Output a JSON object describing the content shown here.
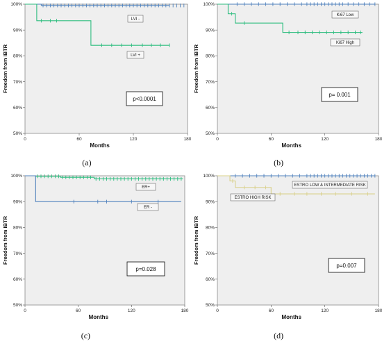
{
  "chart_data": [
    {
      "type": "line",
      "caption": "(a)",
      "xlabel": "Months",
      "ylabel": "Freedom from IBTR",
      "xticks": [
        "0",
        "60",
        "120",
        "180"
      ],
      "yticks": [
        "50%",
        "60%",
        "70%",
        "80%",
        "90%",
        "100%"
      ],
      "xlim": [
        0,
        180
      ],
      "ylim": [
        0.5,
        1.0
      ],
      "grid": false,
      "p_value": "p<0.0001",
      "series": [
        {
          "name": "LVI -",
          "color": "#4f81bd",
          "x": [
            0,
            18,
            18,
            160
          ],
          "y": [
            1.0,
            1.0,
            0.995,
            0.995
          ],
          "censor_x": [
            20,
            24,
            28,
            32,
            36,
            40,
            44,
            48,
            52,
            56,
            60,
            64,
            68,
            72,
            76,
            80,
            84,
            88,
            92,
            96,
            100,
            104,
            108,
            112,
            116,
            120,
            124,
            128,
            132,
            136,
            140,
            144,
            148,
            152,
            156,
            160,
            164,
            168,
            172,
            176
          ],
          "censor_y": 0.995
        },
        {
          "name": "LVI +",
          "color": "#2dbd7f",
          "x": [
            0,
            13,
            13,
            73,
            73,
            160
          ],
          "y": [
            1.0,
            1.0,
            0.936,
            0.936,
            0.841,
            0.841
          ],
          "censor_x": [
            18,
            28,
            35,
            85,
            96,
            107,
            118,
            130,
            140,
            150,
            160
          ],
          "censor_y_list": [
            0.936,
            0.936,
            0.936,
            0.841,
            0.841,
            0.841,
            0.841,
            0.841,
            0.841,
            0.841,
            0.841
          ]
        }
      ]
    },
    {
      "type": "line",
      "caption": "(b)",
      "xlabel": "Months",
      "ylabel": "Freedom from IBTR",
      "xticks": [
        "0",
        "60",
        "120",
        "180"
      ],
      "yticks": [
        "50%",
        "60%",
        "70%",
        "80%",
        "90%",
        "100%"
      ],
      "xlim": [
        0,
        180
      ],
      "ylim": [
        0.5,
        1.0
      ],
      "grid": false,
      "p_value": "p= 0.001",
      "series": [
        {
          "name": "Ki67 Low",
          "color": "#4f81bd",
          "x": [
            0,
            176
          ],
          "y": [
            1.0,
            1.0
          ],
          "censor_x": [
            22,
            30,
            38,
            46,
            54,
            62,
            70,
            78,
            86,
            94,
            100,
            104,
            108,
            112,
            116,
            120,
            124,
            128,
            132,
            136,
            140,
            146,
            152,
            158,
            164,
            170,
            176
          ],
          "censor_y": 1.0
        },
        {
          "name": "Ki67 High",
          "color": "#2dbd7f",
          "x": [
            0,
            12,
            12,
            20,
            20,
            73,
            73,
            162
          ],
          "y": [
            1.0,
            1.0,
            0.963,
            0.963,
            0.927,
            0.927,
            0.891,
            0.891
          ],
          "censor_x": [
            16,
            30,
            80,
            90,
            98,
            106,
            114,
            122,
            130,
            138,
            146,
            154,
            160
          ],
          "censor_y_list": [
            0.963,
            0.927,
            0.891,
            0.891,
            0.891,
            0.891,
            0.891,
            0.891,
            0.891,
            0.891,
            0.891,
            0.891,
            0.891
          ]
        }
      ]
    },
    {
      "type": "line",
      "caption": "(c)",
      "xlabel": "Months",
      "ylabel": "Freedom from IBTR",
      "xticks": [
        "0",
        "60",
        "120",
        "180"
      ],
      "yticks": [
        "50%",
        "60%",
        "70%",
        "80%",
        "90%",
        "100%"
      ],
      "xlim": [
        0,
        180
      ],
      "ylim": [
        0.5,
        1.0
      ],
      "grid": false,
      "p_value": "p=0.028",
      "series": [
        {
          "name": "ER+",
          "color": "#2dbd7f",
          "x": [
            0,
            12,
            12,
            40,
            40,
            78,
            78,
            178
          ],
          "y": [
            1.0,
            1.0,
            0.998,
            0.998,
            0.994,
            0.994,
            0.988,
            0.988
          ],
          "censor_x": [
            14,
            18,
            22,
            26,
            30,
            34,
            38,
            42,
            46,
            50,
            54,
            58,
            62,
            66,
            70,
            74,
            80,
            84,
            88,
            92,
            96,
            100,
            104,
            108,
            112,
            116,
            120,
            124,
            128,
            132,
            136,
            140,
            144,
            148,
            152,
            156,
            160,
            164,
            168,
            172,
            176
          ],
          "censor_y_list": [
            0.998,
            0.998,
            0.998,
            0.998,
            0.998,
            0.998,
            0.998,
            0.994,
            0.994,
            0.994,
            0.994,
            0.994,
            0.994,
            0.994,
            0.994,
            0.994,
            0.988,
            0.988,
            0.988,
            0.988,
            0.988,
            0.988,
            0.988,
            0.988,
            0.988,
            0.988,
            0.988,
            0.988,
            0.988,
            0.988,
            0.988,
            0.988,
            0.988,
            0.988,
            0.988,
            0.988,
            0.988,
            0.988,
            0.988,
            0.988,
            0.988
          ]
        },
        {
          "name": "ER -",
          "color": "#4f81bd",
          "x": [
            0,
            12,
            12,
            176
          ],
          "y": [
            1.0,
            1.0,
            0.9,
            0.9
          ],
          "censor_x": [
            55,
            82,
            92,
            120,
            150
          ],
          "censor_y": 0.9
        }
      ]
    },
    {
      "type": "line",
      "caption": "(d)",
      "xlabel": "Months",
      "ylabel": "Freedom from IBTR",
      "xticks": [
        "0",
        "60",
        "120",
        "180"
      ],
      "yticks": [
        "50%",
        "60%",
        "70%",
        "80%",
        "90%",
        "100%"
      ],
      "xlim": [
        0,
        180
      ],
      "ylim": [
        0.5,
        1.0
      ],
      "grid": false,
      "p_value": "p=0.007",
      "series": [
        {
          "name": "ESTRO LOW & INTERMEDIATE RISK",
          "color": "#4f81bd",
          "x": [
            0,
            176
          ],
          "y": [
            1.0,
            1.0
          ],
          "censor_x": [
            20,
            28,
            36,
            44,
            52,
            60,
            68,
            76,
            84,
            92,
            100,
            104,
            108,
            112,
            116,
            120,
            124,
            128,
            132,
            136,
            140,
            144,
            148,
            152,
            156,
            160,
            164,
            168,
            172,
            176
          ],
          "censor_y": 1.0
        },
        {
          "name": "ESTRO HIGH RISK",
          "color": "#d9d08a",
          "x": [
            0,
            14,
            14,
            20,
            20,
            60,
            60,
            176
          ],
          "y": [
            1.0,
            1.0,
            0.98,
            0.98,
            0.955,
            0.955,
            0.93,
            0.93
          ],
          "censor_x": [
            17,
            30,
            42,
            54,
            70,
            86,
            100,
            116,
            132,
            150,
            168
          ],
          "censor_y_list": [
            0.98,
            0.955,
            0.955,
            0.955,
            0.93,
            0.93,
            0.93,
            0.93,
            0.93,
            0.93,
            0.93
          ]
        }
      ]
    }
  ]
}
